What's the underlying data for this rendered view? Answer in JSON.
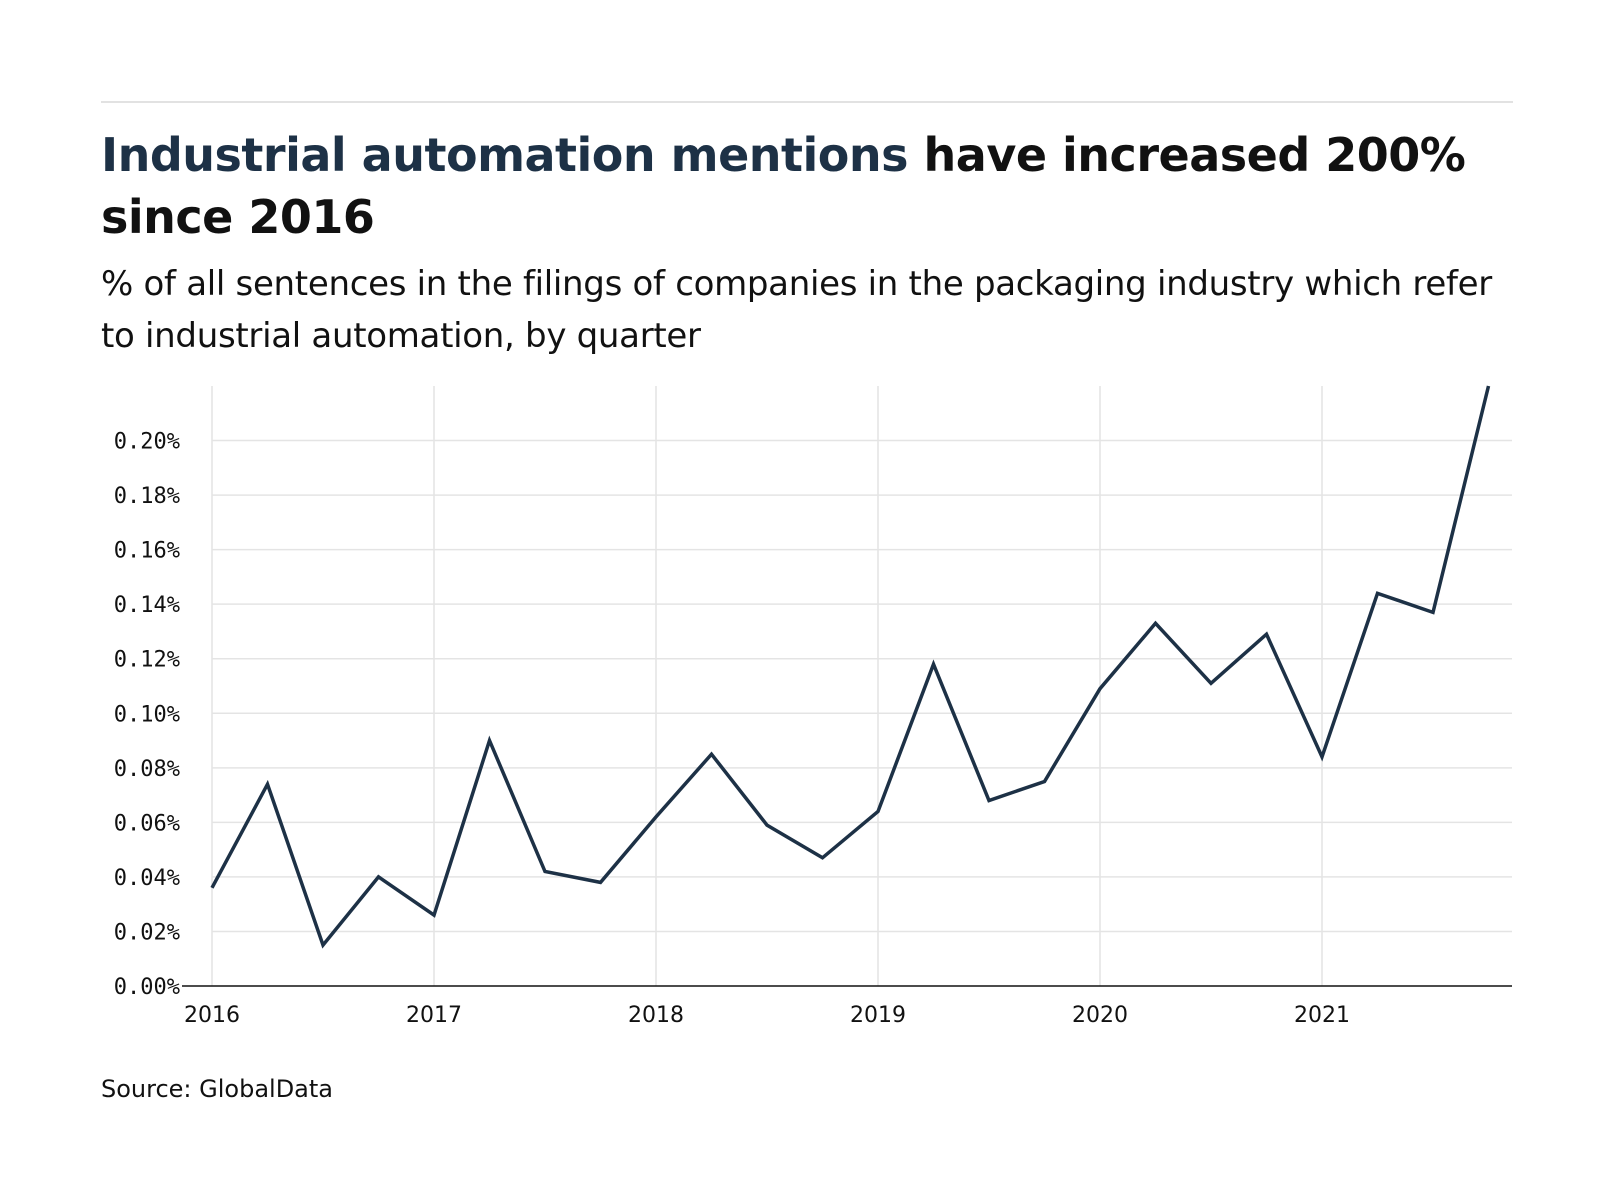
{
  "header": {
    "title_highlight": "Industrial automation mentions",
    "title_rest": " have increased 200% since 2016",
    "subtitle": "% of all sentences in the filings of companies in the packaging industry which refer to industrial automation, by quarter"
  },
  "footer": {
    "source": "Source: GlobalData"
  },
  "colors": {
    "line": "#1d3146",
    "grid": "#e4e4e4",
    "axis": "#111111",
    "title_highlight": "#1d3146"
  },
  "chart_data": {
    "type": "line",
    "title": "Industrial automation mentions have increased 200% since 2016",
    "subtitle": "% of all sentences in the filings of companies in the packaging industry which refer to industrial automation, by quarter",
    "xlabel": "",
    "ylabel": "",
    "x": [
      "2016 Q1",
      "2016 Q2",
      "2016 Q3",
      "2016 Q4",
      "2017 Q1",
      "2017 Q2",
      "2017 Q3",
      "2017 Q4",
      "2018 Q1",
      "2018 Q2",
      "2018 Q3",
      "2018 Q4",
      "2019 Q1",
      "2019 Q2",
      "2019 Q3",
      "2019 Q4",
      "2020 Q1",
      "2020 Q2",
      "2020 Q3",
      "2020 Q4",
      "2021 Q1",
      "2021 Q2",
      "2021 Q3",
      "2021 Q4"
    ],
    "series": [
      {
        "name": "",
        "values": [
          0.036,
          0.074,
          0.015,
          0.04,
          0.026,
          0.09,
          0.042,
          0.038,
          0.062,
          0.085,
          0.059,
          0.047,
          0.064,
          0.118,
          0.068,
          0.075,
          0.109,
          0.133,
          0.111,
          0.129,
          0.084,
          0.144,
          0.137,
          0.22
        ]
      }
    ],
    "x_ticks": [
      "2016",
      "2017",
      "2018",
      "2019",
      "2020",
      "2021"
    ],
    "y_ticks": [
      "0.00%",
      "0.02%",
      "0.04%",
      "0.06%",
      "0.08%",
      "0.10%",
      "0.12%",
      "0.14%",
      "0.16%",
      "0.18%",
      "0.20%"
    ],
    "y_tick_values": [
      0,
      0.02,
      0.04,
      0.06,
      0.08,
      0.1,
      0.12,
      0.14,
      0.16,
      0.18,
      0.2
    ],
    "ylim": [
      0,
      0.22
    ],
    "grid": true,
    "legend": "none"
  }
}
